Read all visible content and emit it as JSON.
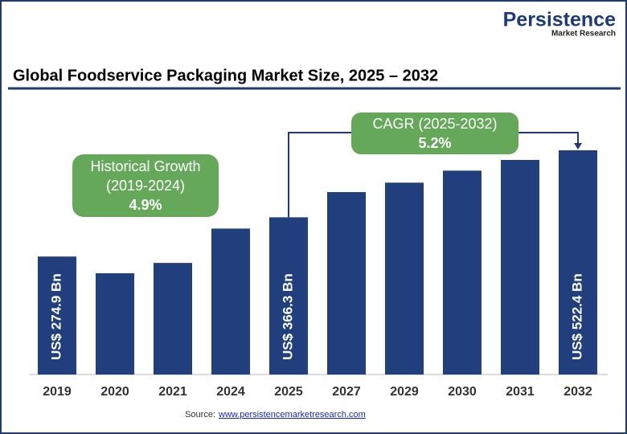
{
  "brand": {
    "name": "Persistence",
    "tagline": "Market Research"
  },
  "chart_data": {
    "type": "bar",
    "title": "Global Foodservice Packaging Market Size, 2025 – 2032",
    "categories": [
      "2019",
      "2020",
      "2021",
      "2024",
      "2025",
      "2027",
      "2029",
      "2030",
      "2031",
      "2032"
    ],
    "values": [
      274.9,
      236,
      260,
      340,
      366.3,
      425,
      447,
      475,
      500,
      522.4
    ],
    "value_labels": [
      "US$ 274.9 Bn",
      null,
      null,
      null,
      "US$ 366.3 Bn",
      null,
      null,
      null,
      null,
      "US$ 522.4 Bn"
    ],
    "color": "#213f7c",
    "annotations": {
      "historical": {
        "label": "Historical Growth",
        "period": "(2019-2024)",
        "rate": "4.9%"
      },
      "forecast": {
        "label": "CAGR (2025-2032)",
        "rate": "5.2%"
      }
    }
  },
  "source": {
    "label": "Source:",
    "link": "www.persistencemarketresearch.com"
  }
}
